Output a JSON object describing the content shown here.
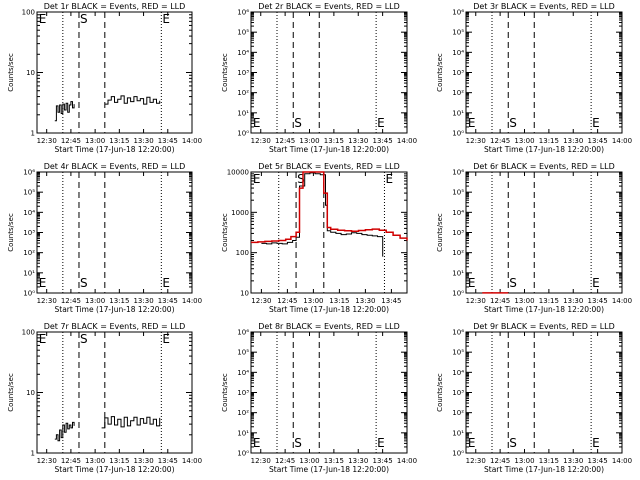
{
  "chart_data": [
    {
      "type": "line",
      "title": "Det 1r BLACK = Events, RED = LLD",
      "xlabel": "Start Time (17-Jun-18 12:20:00)",
      "ylabel": "Counts/sec",
      "ylim": [
        1,
        100
      ],
      "yscale": "log",
      "xlim": [
        "12:24",
        "14:00"
      ],
      "xticks": [
        "12:30",
        "12:45",
        "13:00",
        "13:15",
        "13:30",
        "13:45",
        "14:00"
      ],
      "yticks": [
        "1",
        "10",
        "100"
      ],
      "markers": [
        {
          "label": "E",
          "position": "top"
        },
        {
          "label": "S",
          "position": "top"
        },
        {
          "label": "E",
          "position": "top"
        }
      ],
      "series": [
        {
          "color": "#000000",
          "segments": [
            {
              "x": [
                "12:35",
                "12:36",
                "12:37",
                "12:38",
                "12:39",
                "12:40",
                "12:41",
                "12:42",
                "12:43",
                "12:44",
                "12:45",
                "12:46",
                "12:47"
              ],
              "y": [
                1.6,
                2.8,
                2.2,
                2.9,
                2.1,
                3.0,
                2.4,
                3.1,
                2.2,
                2.9,
                3.3,
                2.6,
                3.0
              ]
            },
            {
              "x": [
                "13:06",
                "13:08",
                "13:10",
                "13:12",
                "13:14",
                "13:16",
                "13:18",
                "13:20",
                "13:22",
                "13:24",
                "13:26",
                "13:28",
                "13:30",
                "13:32",
                "13:34",
                "13:36",
                "13:38",
                "13:40"
              ],
              "y": [
                3.0,
                3.5,
                4.0,
                3.2,
                3.6,
                4.1,
                3.1,
                3.8,
                3.3,
                4.0,
                3.4,
                3.7,
                3.0,
                3.9,
                3.2,
                3.6,
                3.1,
                3.4
              ]
            }
          ]
        }
      ]
    },
    {
      "type": "line",
      "title": "Det 2r BLACK = Events, RED = LLD",
      "xlabel": "Start Time (17-Jun-18 12:20:00)",
      "ylabel": "Counts/sec",
      "ylim": [
        1,
        1000000
      ],
      "yscale": "log",
      "xlim": [
        "12:24",
        "14:00"
      ],
      "xticks": [
        "12:30",
        "12:45",
        "13:00",
        "13:15",
        "13:30",
        "13:45",
        "14:00"
      ],
      "yticks": [
        "10⁰",
        "10¹",
        "10²",
        "10³",
        "10⁴",
        "10⁵",
        "10⁶"
      ],
      "markers": [
        {
          "label": "E",
          "position": "bottom"
        },
        {
          "label": "S",
          "position": "bottom"
        },
        {
          "label": "E",
          "position": "bottom"
        }
      ],
      "series": []
    },
    {
      "type": "line",
      "title": "Det 3r BLACK = Events, RED = LLD",
      "xlabel": "Start Time (17-Jun-18 12:20:00)",
      "ylabel": "Counts/sec",
      "ylim": [
        1,
        1000000
      ],
      "yscale": "log",
      "xlim": [
        "12:24",
        "14:00"
      ],
      "xticks": [
        "12:30",
        "12:45",
        "13:00",
        "13:15",
        "13:30",
        "13:45",
        "14:00"
      ],
      "yticks": [
        "10⁰",
        "10¹",
        "10²",
        "10³",
        "10⁴",
        "10⁵",
        "10⁶"
      ],
      "markers": [
        {
          "label": "E",
          "position": "bottom"
        },
        {
          "label": "S",
          "position": "bottom"
        },
        {
          "label": "E",
          "position": "bottom"
        }
      ],
      "series": []
    },
    {
      "type": "line",
      "title": "Det 4r BLACK = Events, RED = LLD",
      "xlabel": "Start Time (17-Jun-18 12:20:00)",
      "ylabel": "Counts/sec",
      "ylim": [
        1,
        1000000
      ],
      "yscale": "log",
      "xlim": [
        "12:24",
        "14:00"
      ],
      "xticks": [
        "12:30",
        "12:45",
        "13:00",
        "13:15",
        "13:30",
        "13:45",
        "14:00"
      ],
      "yticks": [
        "10⁰",
        "10¹",
        "10²",
        "10³",
        "10⁴",
        "10⁵",
        "10⁶"
      ],
      "markers": [
        {
          "label": "E",
          "position": "bottom"
        },
        {
          "label": "S",
          "position": "bottom"
        },
        {
          "label": "E",
          "position": "bottom"
        }
      ],
      "series": []
    },
    {
      "type": "line",
      "title": "Det 5r BLACK = Events, RED = LLD",
      "xlabel": "Start Time (17-Jun-18 12:20:00)",
      "ylabel": "Counts/sec",
      "ylim": [
        10,
        10000
      ],
      "yscale": "log",
      "xlim": [
        "12:24",
        "13:54"
      ],
      "xticks": [
        "12:30",
        "12:45",
        "13:00",
        "13:15",
        "13:30",
        "13:45"
      ],
      "yticks": [
        "10",
        "100",
        "1000",
        "10000"
      ],
      "markers": [
        {
          "label": "E",
          "position": "top"
        },
        {
          "label": "S",
          "position": "top"
        },
        {
          "label": "E",
          "position": "top"
        }
      ],
      "series": [
        {
          "color": "#000000",
          "segments": [
            {
              "x": [
                "12:30",
                "12:33",
                "12:36",
                "12:39",
                "12:42",
                "12:45",
                "12:48",
                "12:50",
                "12:52",
                "12:55",
                "12:58",
                "13:01",
                "13:04",
                "13:07",
                "13:08",
                "13:10",
                "13:13",
                "13:16",
                "13:19",
                "13:22",
                "13:25",
                "13:28",
                "13:31",
                "13:34",
                "13:37",
                "13:40"
              ],
              "y": [
                170,
                165,
                175,
                170,
                165,
                180,
                200,
                240,
                4500,
                9000,
                9500,
                9000,
                8500,
                1500,
                350,
                320,
                300,
                280,
                290,
                310,
                300,
                280,
                270,
                260,
                250,
                80
              ]
            }
          ]
        },
        {
          "color": "#d00000",
          "segments": [
            {
              "x": [
                "12:24",
                "12:28",
                "12:32",
                "12:36",
                "12:40",
                "12:44",
                "12:47",
                "12:50",
                "12:52",
                "12:54",
                "12:57",
                "13:00",
                "13:03",
                "13:06",
                "13:08",
                "13:10",
                "13:14",
                "13:18",
                "13:22",
                "13:26",
                "13:30",
                "13:34",
                "13:38",
                "13:42",
                "13:46",
                "13:50",
                "13:54"
              ],
              "y": [
                180,
                185,
                190,
                195,
                200,
                215,
                250,
                320,
                4000,
                12000,
                12000,
                12000,
                12000,
                3000,
                420,
                380,
                360,
                350,
                340,
                355,
                370,
                385,
                360,
                320,
                270,
                230,
                200
              ]
            }
          ]
        }
      ]
    },
    {
      "type": "line",
      "title": "Det 6r BLACK = Events, RED = LLD",
      "xlabel": "Start Time (17-Jun-18 12:20:00)",
      "ylabel": "Counts/sec",
      "ylim": [
        1,
        1000000
      ],
      "yscale": "log",
      "xlim": [
        "12:24",
        "14:00"
      ],
      "xticks": [
        "12:30",
        "12:45",
        "13:00",
        "13:15",
        "13:30",
        "13:45",
        "14:00"
      ],
      "yticks": [
        "10⁰",
        "10¹",
        "10²",
        "10³",
        "10⁴",
        "10⁵",
        "10⁶"
      ],
      "markers": [
        {
          "label": "E",
          "position": "bottom"
        },
        {
          "label": "S",
          "position": "bottom"
        },
        {
          "label": "E",
          "position": "bottom"
        }
      ],
      "series": [
        {
          "color": "#d00000",
          "segments": [
            {
              "x": [
                "12:34",
                "12:50"
              ],
              "y": [
                1.01,
                1.01
              ]
            }
          ]
        }
      ]
    },
    {
      "type": "line",
      "title": "Det 7r BLACK = Events, RED = LLD",
      "xlabel": "Start Time (17-Jun-18 12:20:00)",
      "ylabel": "Counts/sec",
      "ylim": [
        1,
        100
      ],
      "yscale": "log",
      "xlim": [
        "12:24",
        "14:00"
      ],
      "xticks": [
        "12:30",
        "12:45",
        "13:00",
        "13:15",
        "13:30",
        "13:45",
        "14:00"
      ],
      "yticks": [
        "1",
        "10",
        "100"
      ],
      "markers": [
        {
          "label": "E",
          "position": "top"
        },
        {
          "label": "S",
          "position": "top"
        },
        {
          "label": "E",
          "position": "top"
        }
      ],
      "series": [
        {
          "color": "#000000",
          "segments": [
            {
              "x": [
                "12:35",
                "12:36",
                "12:37",
                "12:38",
                "12:39",
                "12:40",
                "12:41",
                "12:42",
                "12:43",
                "12:44",
                "12:45",
                "12:46",
                "12:47"
              ],
              "y": [
                1.7,
                2.0,
                1.6,
                2.4,
                1.8,
                2.9,
                2.2,
                3.1,
                2.5,
                2.9,
                2.6,
                3.2,
                2.8
              ]
            },
            {
              "x": [
                "13:04",
                "13:06",
                "13:08",
                "13:10",
                "13:12",
                "13:14",
                "13:16",
                "13:18",
                "13:20",
                "13:22",
                "13:24",
                "13:26",
                "13:28",
                "13:30",
                "13:32",
                "13:34",
                "13:36",
                "13:38",
                "13:40"
              ],
              "y": [
                2.6,
                3.8,
                3.0,
                4.0,
                2.9,
                3.6,
                2.7,
                3.9,
                2.8,
                3.4,
                3.9,
                2.9,
                3.7,
                3.1,
                3.9,
                3.0,
                3.6,
                2.8,
                3.8
              ]
            }
          ]
        }
      ]
    },
    {
      "type": "line",
      "title": "Det 8r BLACK = Events, RED = LLD",
      "xlabel": "Start Time (17-Jun-18 12:20:00)",
      "ylabel": "Counts/sec",
      "ylim": [
        1,
        1000000
      ],
      "yscale": "log",
      "xlim": [
        "12:24",
        "14:00"
      ],
      "xticks": [
        "12:30",
        "12:45",
        "13:00",
        "13:15",
        "13:30",
        "13:45",
        "14:00"
      ],
      "yticks": [
        "10⁰",
        "10¹",
        "10²",
        "10³",
        "10⁴",
        "10⁵",
        "10⁶"
      ],
      "markers": [
        {
          "label": "E",
          "position": "bottom"
        },
        {
          "label": "S",
          "position": "bottom"
        },
        {
          "label": "E",
          "position": "bottom"
        }
      ],
      "series": []
    },
    {
      "type": "line",
      "title": "Det 9r BLACK = Events, RED = LLD",
      "xlabel": "Start Time (17-Jun-18 12:20:00)",
      "ylabel": "Counts/sec",
      "ylim": [
        1,
        1000000
      ],
      "yscale": "log",
      "xlim": [
        "12:24",
        "14:00"
      ],
      "xticks": [
        "12:30",
        "12:45",
        "13:00",
        "13:15",
        "13:30",
        "13:45",
        "14:00"
      ],
      "yticks": [
        "10⁰",
        "10¹",
        "10²",
        "10³",
        "10⁴",
        "10⁵",
        "10⁶"
      ],
      "markers": [
        {
          "label": "E",
          "position": "bottom"
        },
        {
          "label": "S",
          "position": "bottom"
        },
        {
          "label": "E",
          "position": "bottom"
        }
      ],
      "series": []
    }
  ]
}
